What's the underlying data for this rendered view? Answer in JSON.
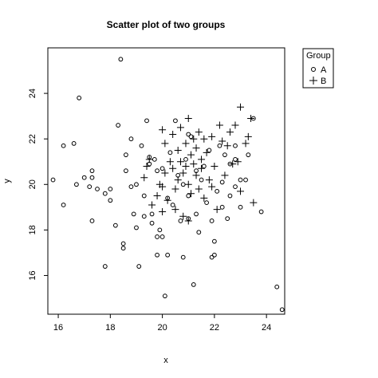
{
  "chart_data": {
    "type": "scatter",
    "title": "Scatter plot of two groups",
    "xlabel": "x",
    "ylabel": "y",
    "xlim": [
      15.6,
      24.7
    ],
    "ylim": [
      14.3,
      26.0
    ],
    "x_ticks": [
      16,
      18,
      20,
      22,
      24
    ],
    "y_ticks": [
      16,
      18,
      20,
      22,
      24
    ],
    "legend": {
      "title": "Group",
      "placement": "outside-right",
      "entries": [
        {
          "label": "A",
          "marker": "circle"
        },
        {
          "label": "B",
          "marker": "plus"
        }
      ]
    },
    "series": [
      {
        "name": "A",
        "marker": "circle",
        "points": [
          [
            15.8,
            20.2
          ],
          [
            16.2,
            21.7
          ],
          [
            16.2,
            19.1
          ],
          [
            16.6,
            21.8
          ],
          [
            16.7,
            20.0
          ],
          [
            16.8,
            23.8
          ],
          [
            17.0,
            20.3
          ],
          [
            17.2,
            19.9
          ],
          [
            17.3,
            20.6
          ],
          [
            17.3,
            20.3
          ],
          [
            17.3,
            18.4
          ],
          [
            17.5,
            19.8
          ],
          [
            17.8,
            19.6
          ],
          [
            17.8,
            16.4
          ],
          [
            18.0,
            19.8
          ],
          [
            18.0,
            19.3
          ],
          [
            18.2,
            18.2
          ],
          [
            18.3,
            22.6
          ],
          [
            18.4,
            25.5
          ],
          [
            18.5,
            17.2
          ],
          [
            18.5,
            17.4
          ],
          [
            18.6,
            20.6
          ],
          [
            18.6,
            21.3
          ],
          [
            18.8,
            22.0
          ],
          [
            18.8,
            19.9
          ],
          [
            18.9,
            18.7
          ],
          [
            19.0,
            20.0
          ],
          [
            19.0,
            18.1
          ],
          [
            19.1,
            16.4
          ],
          [
            19.2,
            21.7
          ],
          [
            19.3,
            19.5
          ],
          [
            19.3,
            18.6
          ],
          [
            19.4,
            22.8
          ],
          [
            19.5,
            21.2
          ],
          [
            19.5,
            20.9
          ],
          [
            19.6,
            18.7
          ],
          [
            19.6,
            18.3
          ],
          [
            19.7,
            21.1
          ],
          [
            19.8,
            20.6
          ],
          [
            19.8,
            17.7
          ],
          [
            19.8,
            16.9
          ],
          [
            19.9,
            18.0
          ],
          [
            20.0,
            20.7
          ],
          [
            20.0,
            17.7
          ],
          [
            20.1,
            15.1
          ],
          [
            20.2,
            16.9
          ],
          [
            20.2,
            19.4
          ],
          [
            20.3,
            21.4
          ],
          [
            20.4,
            19.1
          ],
          [
            20.5,
            22.8
          ],
          [
            20.6,
            20.4
          ],
          [
            20.7,
            18.4
          ],
          [
            20.8,
            20.0
          ],
          [
            20.8,
            16.8
          ],
          [
            20.9,
            21.1
          ],
          [
            21.0,
            22.2
          ],
          [
            21.0,
            19.5
          ],
          [
            21.0,
            18.5
          ],
          [
            21.1,
            22.1
          ],
          [
            21.2,
            15.6
          ],
          [
            21.3,
            20.6
          ],
          [
            21.3,
            18.7
          ],
          [
            21.4,
            17.9
          ],
          [
            21.5,
            20.2
          ],
          [
            21.6,
            20.8
          ],
          [
            21.7,
            19.2
          ],
          [
            21.8,
            21.5
          ],
          [
            21.9,
            18.4
          ],
          [
            21.9,
            16.8
          ],
          [
            22.0,
            16.9
          ],
          [
            22.0,
            17.5
          ],
          [
            22.1,
            19.7
          ],
          [
            22.2,
            21.7
          ],
          [
            22.3,
            20.1
          ],
          [
            22.3,
            19.0
          ],
          [
            22.4,
            21.3
          ],
          [
            22.5,
            18.5
          ],
          [
            22.6,
            19.5
          ],
          [
            22.6,
            20.9
          ],
          [
            22.8,
            21.1
          ],
          [
            22.8,
            19.9
          ],
          [
            22.8,
            21.7
          ],
          [
            23.0,
            20.2
          ],
          [
            23.0,
            19.0
          ],
          [
            23.2,
            20.2
          ],
          [
            23.3,
            21.3
          ],
          [
            23.5,
            22.9
          ],
          [
            23.8,
            18.8
          ],
          [
            24.4,
            15.5
          ],
          [
            24.6,
            14.5
          ]
        ]
      },
      {
        "name": "B",
        "marker": "plus",
        "points": [
          [
            19.3,
            20.3
          ],
          [
            19.4,
            20.8
          ],
          [
            19.5,
            21.1
          ],
          [
            19.6,
            19.1
          ],
          [
            19.8,
            19.5
          ],
          [
            19.9,
            20.0
          ],
          [
            20.0,
            22.4
          ],
          [
            20.0,
            19.9
          ],
          [
            20.1,
            21.8
          ],
          [
            20.1,
            20.5
          ],
          [
            20.2,
            19.3
          ],
          [
            20.3,
            21.0
          ],
          [
            20.4,
            22.2
          ],
          [
            20.4,
            20.7
          ],
          [
            20.5,
            19.8
          ],
          [
            20.5,
            18.9
          ],
          [
            20.6,
            21.5
          ],
          [
            20.6,
            20.2
          ],
          [
            20.7,
            22.5
          ],
          [
            20.7,
            21.0
          ],
          [
            20.8,
            20.5
          ],
          [
            20.8,
            18.6
          ],
          [
            20.9,
            21.8
          ],
          [
            20.9,
            20.8
          ],
          [
            21.0,
            22.9
          ],
          [
            21.0,
            20.0
          ],
          [
            21.1,
            21.3
          ],
          [
            21.1,
            19.6
          ],
          [
            21.2,
            22.0
          ],
          [
            21.2,
            20.9
          ],
          [
            21.3,
            21.6
          ],
          [
            21.3,
            20.4
          ],
          [
            21.4,
            22.3
          ],
          [
            21.4,
            19.8
          ],
          [
            21.5,
            21.1
          ],
          [
            21.5,
            20.7
          ],
          [
            21.6,
            22.0
          ],
          [
            21.6,
            19.4
          ],
          [
            21.7,
            21.4
          ],
          [
            21.8,
            20.2
          ],
          [
            21.9,
            22.1
          ],
          [
            21.9,
            19.9
          ],
          [
            22.0,
            20.8
          ],
          [
            22.1,
            18.9
          ],
          [
            22.2,
            22.6
          ],
          [
            22.3,
            21.9
          ],
          [
            22.4,
            20.4
          ],
          [
            22.5,
            21.7
          ],
          [
            22.6,
            22.3
          ],
          [
            22.7,
            20.9
          ],
          [
            22.8,
            22.6
          ],
          [
            22.9,
            21.0
          ],
          [
            23.0,
            19.7
          ],
          [
            23.0,
            23.4
          ],
          [
            23.2,
            21.8
          ],
          [
            23.3,
            22.1
          ],
          [
            23.4,
            22.9
          ],
          [
            23.5,
            19.2
          ],
          [
            20.0,
            18.8
          ],
          [
            21.0,
            18.4
          ]
        ]
      }
    ]
  }
}
